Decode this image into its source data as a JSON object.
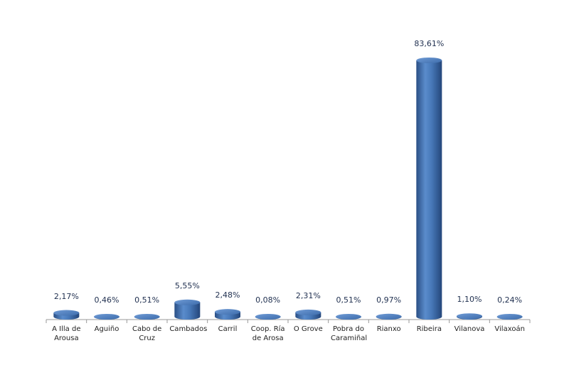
{
  "chart_data": {
    "type": "bar",
    "color": "#3d6cab",
    "categories": [
      "A Illa de Arousa",
      "Aguiño",
      "Cabo de Cruz",
      "Cambados",
      "Carril",
      "Coop. Ría de Arosa",
      "O Grove",
      "Pobra do Caramiñal",
      "Rianxo",
      "Ribeira",
      "Vilanova",
      "Vilaxoán"
    ],
    "values": [
      2.17,
      0.46,
      0.51,
      5.55,
      2.48,
      0.08,
      2.31,
      0.51,
      0.97,
      83.61,
      1.1,
      0.24
    ],
    "value_labels": [
      "2,17%",
      "0,46%",
      "0,51%",
      "5,55%",
      "2,48%",
      "0,08%",
      "2,31%",
      "0,51%",
      "0,97%",
      "83,61%",
      "1,10%",
      "0,24%"
    ]
  }
}
